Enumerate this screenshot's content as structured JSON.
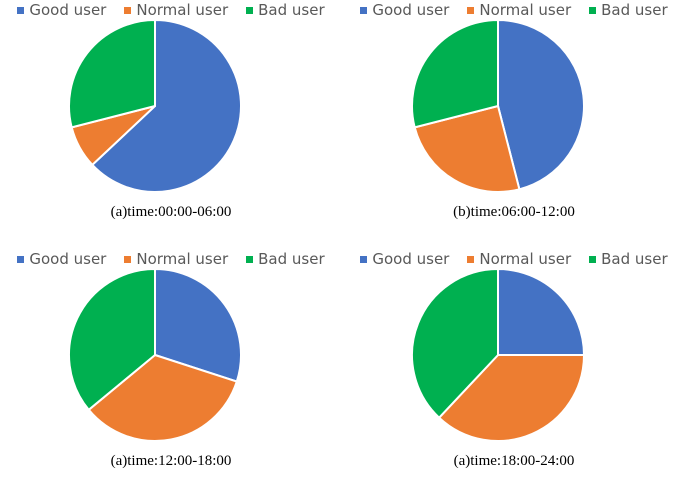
{
  "legend": {
    "items": [
      {
        "label": "Good user",
        "color": "#4472C4"
      },
      {
        "label": "Normal user",
        "color": "#ED7D31"
      },
      {
        "label": "Bad user",
        "color": "#00B050"
      }
    ]
  },
  "chart_data": [
    {
      "type": "pie",
      "caption": "(a)time:00:00-06:00",
      "categories": [
        "Good user",
        "Normal user",
        "Bad user"
      ],
      "values": [
        63,
        8,
        29
      ],
      "colors": [
        "#4472C4",
        "#ED7D31",
        "#00B050"
      ]
    },
    {
      "type": "pie",
      "caption": "(b)time:06:00-12:00",
      "categories": [
        "Good user",
        "Normal user",
        "Bad user"
      ],
      "values": [
        46,
        25,
        29
      ],
      "colors": [
        "#4472C4",
        "#ED7D31",
        "#00B050"
      ]
    },
    {
      "type": "pie",
      "caption": "(a)time:12:00-18:00",
      "categories": [
        "Good user",
        "Normal user",
        "Bad user"
      ],
      "values": [
        30,
        34,
        36
      ],
      "colors": [
        "#4472C4",
        "#ED7D31",
        "#00B050"
      ]
    },
    {
      "type": "pie",
      "caption": "(a)time:18:00-24:00",
      "categories": [
        "Good user",
        "Normal user",
        "Bad user"
      ],
      "values": [
        25,
        37,
        38
      ],
      "colors": [
        "#4472C4",
        "#ED7D31",
        "#00B050"
      ]
    }
  ]
}
